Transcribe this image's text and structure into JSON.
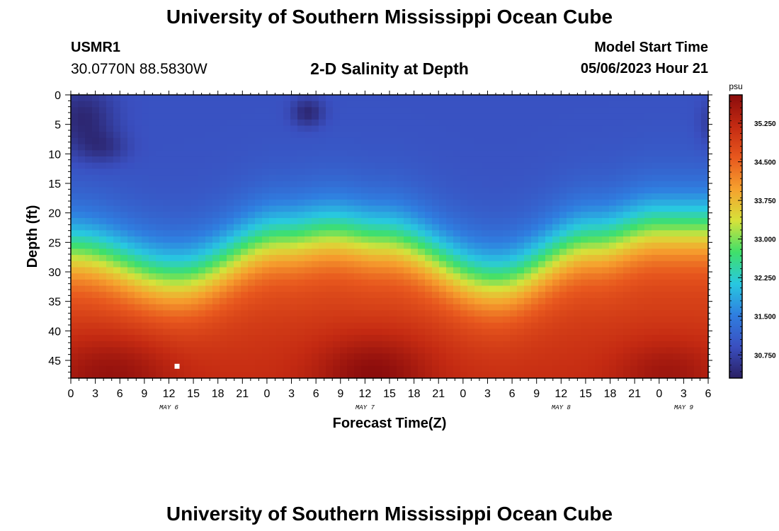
{
  "header": {
    "title": "University of Southern Mississippi Ocean Cube",
    "station_id": "USMR1",
    "coordinates": "30.0770N  88.5830W",
    "plot_title": "2-D Salinity at Depth",
    "model_start_label": "Model Start Time",
    "model_start_value": "05/06/2023 Hour 21"
  },
  "footer": {
    "title": "University of Southern Mississippi Ocean Cube"
  },
  "colors": {
    "colormap": [
      "#2a1f63",
      "#3a4fc0",
      "#2f7ee0",
      "#28c8e0",
      "#3fe06a",
      "#d6e23a",
      "#f6a12e",
      "#e8581e",
      "#c42a12",
      "#8a0c0c"
    ]
  },
  "chart_data": {
    "type": "heatmap",
    "title": "2-D Salinity at Depth",
    "xlabel": "Forecast Time(Z)",
    "ylabel": "Depth (ft)",
    "x_tick_labels": [
      "0",
      "3",
      "6",
      "9",
      "12",
      "15",
      "18",
      "21",
      "0",
      "3",
      "6",
      "9",
      "12",
      "15",
      "18",
      "21",
      "0",
      "3",
      "6",
      "9",
      "12",
      "15",
      "18",
      "21",
      "0",
      "3",
      "6"
    ],
    "x_hours_range": [
      0,
      78
    ],
    "date_labels": [
      {
        "label": "MAY 6",
        "hour": 12
      },
      {
        "label": "MAY 7",
        "hour": 36
      },
      {
        "label": "MAY 8",
        "hour": 60
      },
      {
        "label": "MAY 9",
        "hour": 75
      }
    ],
    "y_ticks": [
      0,
      5,
      10,
      15,
      20,
      25,
      30,
      35,
      40,
      45
    ],
    "ylim": [
      0,
      48
    ],
    "colorbar": {
      "unit": "psu",
      "min": 30.3,
      "max": 35.8,
      "tick_labels": [
        "35.250",
        "34.500",
        "33.750",
        "33.000",
        "32.250",
        "31.500",
        "30.750"
      ],
      "tick_values": [
        35.25,
        34.5,
        33.75,
        33.0,
        32.25,
        31.5,
        30.75
      ]
    },
    "halocline_depth_ft": [
      {
        "hour": 0,
        "depth": 26.5
      },
      {
        "hour": 13,
        "depth": 31.0
      },
      {
        "hour": 26,
        "depth": 24.5
      },
      {
        "hour": 32,
        "depth": 23.5
      },
      {
        "hour": 38,
        "depth": 24.5
      },
      {
        "hour": 52,
        "depth": 31.5
      },
      {
        "hour": 64,
        "depth": 25.0
      },
      {
        "hour": 72,
        "depth": 22.5
      },
      {
        "hour": 78,
        "depth": 22.5
      }
    ],
    "marker": {
      "hour": 13,
      "depth_ft": 46
    }
  }
}
